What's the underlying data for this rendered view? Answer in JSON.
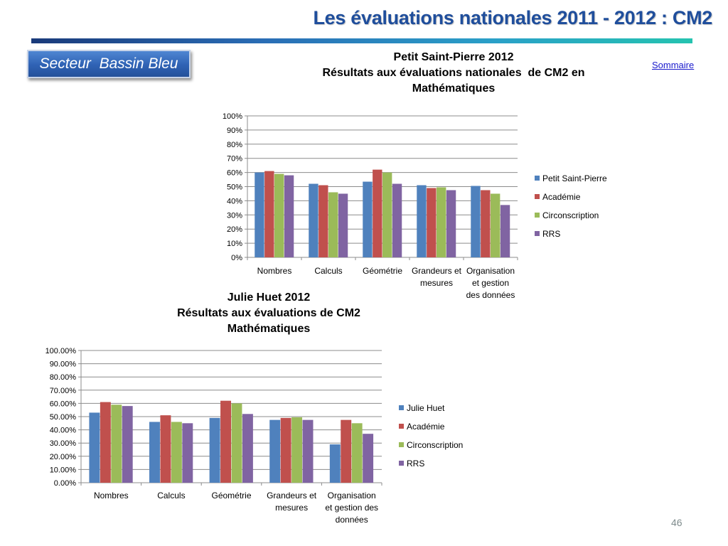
{
  "slide": {
    "title": "Les évaluations nationales 2011 - 2012  : CM2",
    "sector_label": "Secteur  Bassin Bleu",
    "sommaire_link": "Sommaire",
    "page_number": "46"
  },
  "colors": {
    "title": "#1f4e9c",
    "series": [
      "#4f81bd",
      "#c0504d",
      "#9bbb59",
      "#8064a2"
    ]
  },
  "chart_data": [
    {
      "type": "bar",
      "title_lines": [
        "Petit Saint-Pierre 2012",
        "Résultats aux évaluations nationales  de CM2 en",
        "Mathématiques"
      ],
      "xlabel": "",
      "ylabel": "",
      "ylim": [
        0,
        100
      ],
      "y_ticks": [
        "0%",
        "10%",
        "20%",
        "30%",
        "40%",
        "50%",
        "60%",
        "70%",
        "80%",
        "90%",
        "100%"
      ],
      "grid": true,
      "legend_position": "right",
      "categories": [
        "Nombres",
        "Calculs",
        "Géométrie",
        "Grandeurs et mesures",
        "Organisation et gestion des données"
      ],
      "category_labels": [
        [
          "Nombres"
        ],
        [
          "Calculs"
        ],
        [
          "Géométrie"
        ],
        [
          "Grandeurs et",
          "mesures"
        ],
        [
          "Organisation",
          "et gestion",
          "des données"
        ]
      ],
      "series": [
        {
          "name": "Petit Saint-Pierre",
          "values": [
            60,
            52,
            53.5,
            51,
            50.5
          ]
        },
        {
          "name": "Académie",
          "values": [
            61,
            51,
            62,
            49,
            47.5
          ]
        },
        {
          "name": "Circonscription",
          "values": [
            59,
            46,
            60,
            49.5,
            45
          ]
        },
        {
          "name": "RRS",
          "values": [
            58,
            45,
            52,
            47.5,
            37
          ]
        }
      ]
    },
    {
      "type": "bar",
      "title_lines": [
        "Julie Huet 2012",
        "Résultats aux évaluations de CM2",
        "Mathématiques"
      ],
      "xlabel": "",
      "ylabel": "",
      "ylim": [
        0,
        100
      ],
      "y_ticks": [
        "0.00%",
        "10.00%",
        "20.00%",
        "30.00%",
        "40.00%",
        "50.00%",
        "60.00%",
        "70.00%",
        "80.00%",
        "90.00%",
        "100.00%"
      ],
      "grid": true,
      "legend_position": "right",
      "categories": [
        "Nombres",
        "Calculs",
        "Géométrie",
        "Grandeurs et mesures",
        "Organisation et gestion des données"
      ],
      "category_labels": [
        [
          "Nombres"
        ],
        [
          "Calculs"
        ],
        [
          "Géométrie"
        ],
        [
          "Grandeurs et",
          "mesures"
        ],
        [
          "Organisation",
          "et gestion des",
          "données"
        ]
      ],
      "series": [
        {
          "name": "Julie Huet",
          "values": [
            53,
            46,
            49,
            47.5,
            29
          ]
        },
        {
          "name": "Académie",
          "values": [
            61,
            51,
            62,
            49,
            47.5
          ]
        },
        {
          "name": "Circonscription",
          "values": [
            59,
            46,
            60,
            49.5,
            45
          ]
        },
        {
          "name": "RRS",
          "values": [
            58,
            45,
            52,
            47.5,
            37
          ]
        }
      ]
    }
  ]
}
